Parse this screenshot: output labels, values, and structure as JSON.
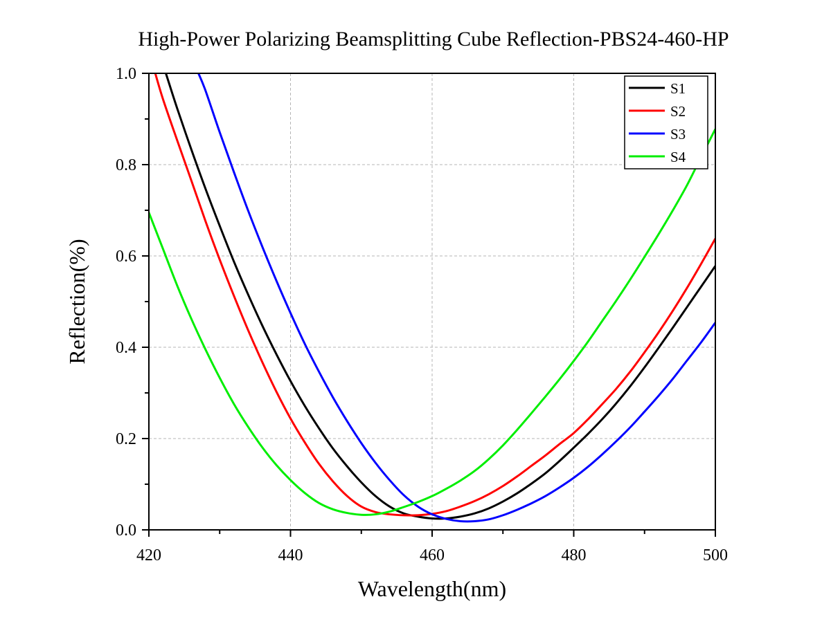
{
  "chart_data": {
    "type": "line",
    "title": "High-Power Polarizing Beamsplitting Cube Reflection-PBS24-460-HP",
    "xlabel": "Wavelength(nm)",
    "ylabel": "Reflection(%)",
    "xlim": [
      420,
      500
    ],
    "ylim": [
      0.0,
      1.0
    ],
    "xticks": [
      420,
      440,
      460,
      480,
      500
    ],
    "xtick_labels": [
      "420",
      "440",
      "460",
      "480",
      "500"
    ],
    "yticks": [
      0.0,
      0.2,
      0.4,
      0.6,
      0.8,
      1.0
    ],
    "ytick_labels": [
      "0.0",
      "0.2",
      "0.4",
      "0.6",
      "0.8",
      "1.0"
    ],
    "grid": true,
    "legend_position": "top-right",
    "series": [
      {
        "name": "S1",
        "color": "#000000",
        "x": [
          422.4,
          424,
          426,
          428,
          430,
          432,
          434,
          436,
          438,
          440,
          442,
          444,
          446,
          448,
          450,
          452,
          454,
          456,
          458,
          460,
          462,
          464,
          466,
          468,
          470,
          472,
          474,
          476,
          478,
          480,
          482,
          484,
          486,
          488,
          490,
          492,
          494,
          496,
          498,
          500
        ],
        "y": [
          1.0,
          0.923,
          0.833,
          0.747,
          0.666,
          0.588,
          0.516,
          0.448,
          0.385,
          0.326,
          0.272,
          0.223,
          0.178,
          0.139,
          0.104,
          0.074,
          0.051,
          0.036,
          0.029,
          0.025,
          0.025,
          0.029,
          0.036,
          0.047,
          0.062,
          0.08,
          0.101,
          0.124,
          0.151,
          0.18,
          0.21,
          0.242,
          0.277,
          0.315,
          0.356,
          0.399,
          0.443,
          0.488,
          0.533,
          0.578
        ]
      },
      {
        "name": "S2",
        "color": "#ff0000",
        "x": [
          420.9,
          422,
          424,
          426,
          428,
          430,
          432,
          434,
          436,
          438,
          440,
          442,
          444,
          446,
          448,
          450,
          452,
          454,
          456,
          458,
          460,
          462,
          464,
          466,
          468,
          470,
          472,
          474,
          476,
          478,
          480,
          482,
          484,
          486,
          488,
          490,
          492,
          494,
          496,
          498,
          500
        ],
        "y": [
          1.0,
          0.943,
          0.853,
          0.765,
          0.676,
          0.592,
          0.513,
          0.438,
          0.368,
          0.303,
          0.244,
          0.192,
          0.145,
          0.106,
          0.074,
          0.051,
          0.039,
          0.034,
          0.032,
          0.032,
          0.035,
          0.041,
          0.051,
          0.063,
          0.078,
          0.096,
          0.117,
          0.14,
          0.163,
          0.188,
          0.212,
          0.242,
          0.275,
          0.309,
          0.347,
          0.389,
          0.433,
          0.48,
          0.53,
          0.583,
          0.638
        ]
      },
      {
        "name": "S3",
        "color": "#0000ff",
        "x": [
          427.0,
          428,
          430,
          432,
          434,
          436,
          438,
          440,
          442,
          444,
          446,
          448,
          450,
          452,
          454,
          456,
          458,
          460,
          462,
          464,
          466,
          468,
          470,
          472,
          474,
          476,
          478,
          480,
          482,
          484,
          486,
          488,
          490,
          492,
          494,
          496,
          498,
          500
        ],
        "y": [
          1.0,
          0.962,
          0.871,
          0.784,
          0.7,
          0.621,
          0.546,
          0.475,
          0.408,
          0.347,
          0.29,
          0.238,
          0.19,
          0.147,
          0.109,
          0.076,
          0.051,
          0.034,
          0.024,
          0.019,
          0.019,
          0.023,
          0.032,
          0.044,
          0.058,
          0.074,
          0.093,
          0.114,
          0.138,
          0.165,
          0.194,
          0.225,
          0.259,
          0.294,
          0.331,
          0.371,
          0.411,
          0.454
        ]
      },
      {
        "name": "S4",
        "color": "#00ee00",
        "x": [
          420,
          422,
          424,
          426,
          428,
          430,
          432,
          434,
          436,
          438,
          440,
          442,
          444,
          446,
          448,
          450,
          452,
          454,
          456,
          458,
          460,
          462,
          464,
          466,
          468,
          470,
          472,
          474,
          476,
          478,
          480,
          482,
          484,
          486,
          488,
          490,
          492,
          494,
          496,
          498,
          500
        ],
        "y": [
          0.695,
          0.615,
          0.535,
          0.462,
          0.395,
          0.333,
          0.276,
          0.226,
          0.181,
          0.142,
          0.109,
          0.081,
          0.059,
          0.045,
          0.037,
          0.033,
          0.034,
          0.04,
          0.05,
          0.061,
          0.074,
          0.09,
          0.108,
          0.129,
          0.155,
          0.185,
          0.219,
          0.255,
          0.292,
          0.33,
          0.37,
          0.412,
          0.457,
          0.502,
          0.549,
          0.598,
          0.648,
          0.7,
          0.755,
          0.817,
          0.878
        ]
      }
    ]
  }
}
